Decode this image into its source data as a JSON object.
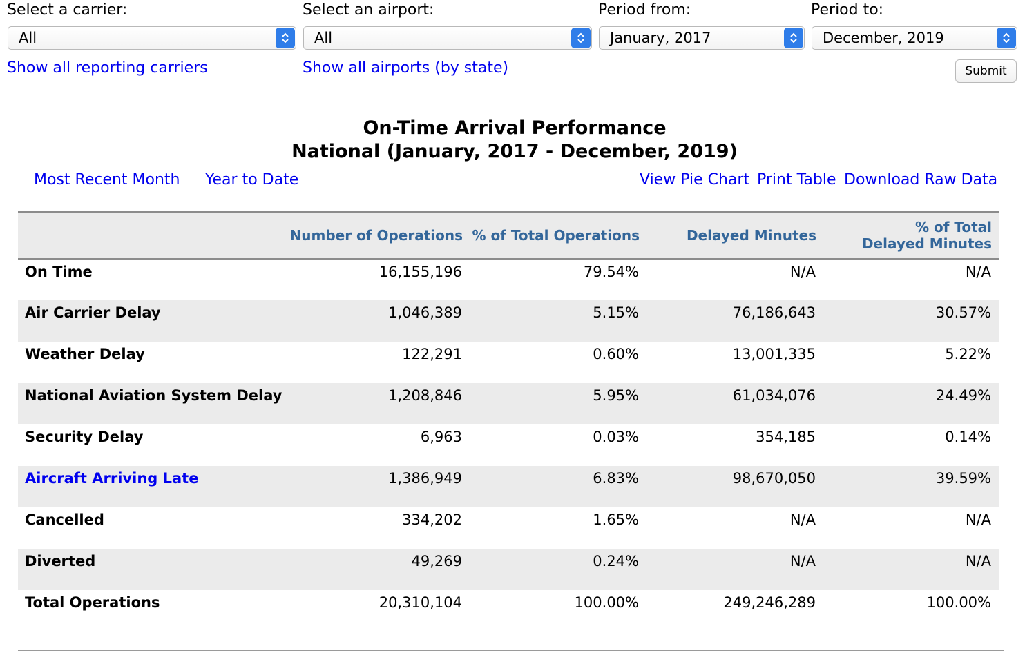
{
  "filters": {
    "carrier": {
      "label": "Select a carrier:",
      "value": "All"
    },
    "airport": {
      "label": "Select an airport:",
      "value": "All"
    },
    "period_from": {
      "label": "Period from:",
      "value": "January, 2017"
    },
    "period_to": {
      "label": "Period to:",
      "value": "December, 2019"
    }
  },
  "links": {
    "show_carriers": "Show all reporting carriers",
    "show_airports": "Show all airports (by state)"
  },
  "submit_label": "Submit",
  "report": {
    "title_line1": "On-Time Arrival Performance",
    "title_line2": "National (January, 2017 - December, 2019)"
  },
  "nav": {
    "most_recent_month": "Most Recent Month",
    "year_to_date": "Year to Date",
    "view_pie_chart": "View Pie Chart",
    "print_table": "Print Table",
    "download_raw_data": "Download Raw Data"
  },
  "table": {
    "headers": {
      "label": "",
      "operations": "Number of Operations",
      "pct_operations": "% of Total Operations",
      "delayed_minutes": "Delayed Minutes",
      "pct_delayed_line1": "% of Total",
      "pct_delayed_line2": "Delayed Minutes"
    },
    "rows": [
      {
        "label": "On Time",
        "operations": "16,155,196",
        "pct_operations": "79.54%",
        "delayed_minutes": "N/A",
        "pct_delayed": "N/A"
      },
      {
        "label": "Air Carrier Delay",
        "operations": "1,046,389",
        "pct_operations": "5.15%",
        "delayed_minutes": "76,186,643",
        "pct_delayed": "30.57%"
      },
      {
        "label": "Weather Delay",
        "operations": "122,291",
        "pct_operations": "0.60%",
        "delayed_minutes": "13,001,335",
        "pct_delayed": "5.22%"
      },
      {
        "label": "National Aviation System Delay",
        "operations": "1,208,846",
        "pct_operations": "5.95%",
        "delayed_minutes": "61,034,076",
        "pct_delayed": "24.49%"
      },
      {
        "label": "Security Delay",
        "operations": "6,963",
        "pct_operations": "0.03%",
        "delayed_minutes": "354,185",
        "pct_delayed": "0.14%"
      },
      {
        "label": "Aircraft Arriving Late",
        "operations": "1,386,949",
        "pct_operations": "6.83%",
        "delayed_minutes": "98,670,050",
        "pct_delayed": "39.59%"
      },
      {
        "label": "Cancelled",
        "operations": "334,202",
        "pct_operations": "1.65%",
        "delayed_minutes": "N/A",
        "pct_delayed": "N/A"
      },
      {
        "label": "Diverted",
        "operations": "49,269",
        "pct_operations": "0.24%",
        "delayed_minutes": "N/A",
        "pct_delayed": "N/A"
      },
      {
        "label": "Total Operations",
        "operations": "20,310,104",
        "pct_operations": "100.00%",
        "delayed_minutes": "249,246,289",
        "pct_delayed": "100.00%"
      }
    ]
  },
  "colors": {
    "link": "#0000ee",
    "header_text": "#33669a",
    "row_shade": "#ebebeb",
    "select_arrow": "#2f7de9"
  }
}
